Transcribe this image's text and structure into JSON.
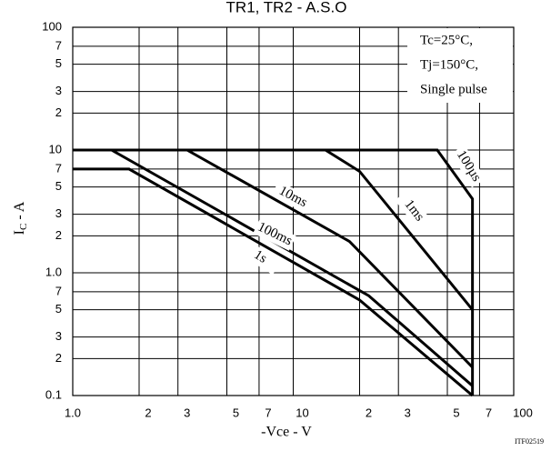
{
  "chart_data": {
    "type": "line",
    "title": "TR1, TR2 - A.S.O",
    "xlabel": "-Vce - V",
    "ylabel": [
      "I",
      "C",
      " - A"
    ],
    "code": "ITF02519",
    "annotations": [
      "Tc=25°C,",
      "Tj=150°C,",
      "Single pulse"
    ],
    "xscale": "log",
    "yscale": "log",
    "grid": true,
    "color": "#000000",
    "xlim": [
      1,
      100
    ],
    "ylim": [
      0.1,
      100
    ],
    "xticks": [
      {
        "value": 1,
        "label": "1.0"
      },
      2,
      3,
      5,
      7,
      10,
      {
        "value": 20,
        "label": "2"
      },
      {
        "value": 30,
        "label": "3"
      },
      {
        "value": 50,
        "label": "5"
      },
      {
        "value": 70,
        "label": "7"
      },
      100
    ],
    "yticks": [
      0.1,
      {
        "value": 0.2,
        "label": "2"
      },
      {
        "value": 0.3,
        "label": "3"
      },
      {
        "value": 0.5,
        "label": "5"
      },
      {
        "value": 0.7,
        "label": "7"
      },
      {
        "value": 1,
        "label": "1.0"
      },
      2,
      3,
      5,
      7,
      10,
      {
        "value": 20,
        "label": "2"
      },
      {
        "value": 30,
        "label": "3"
      },
      {
        "value": 50,
        "label": "5"
      },
      {
        "value": 70,
        "label": "7"
      },
      100
    ],
    "series": [
      {
        "name": "100µs",
        "x": [
          1,
          45,
          65,
          65
        ],
        "values": [
          10,
          10,
          4,
          0.1
        ]
      },
      {
        "name": "1ms",
        "x": [
          14,
          20,
          65
        ],
        "values": [
          10,
          6.7,
          0.5
        ]
      },
      {
        "name": "10ms",
        "x": [
          3.3,
          18,
          65
        ],
        "values": [
          10,
          1.8,
          0.17
        ]
      },
      {
        "name": "100ms",
        "x": [
          1.5,
          22,
          65
        ],
        "values": [
          10,
          0.65,
          0.12
        ]
      },
      {
        "name": "1s",
        "x": [
          1,
          1.8,
          20,
          65
        ],
        "values": [
          7,
          7,
          0.6,
          0.1
        ]
      }
    ]
  }
}
